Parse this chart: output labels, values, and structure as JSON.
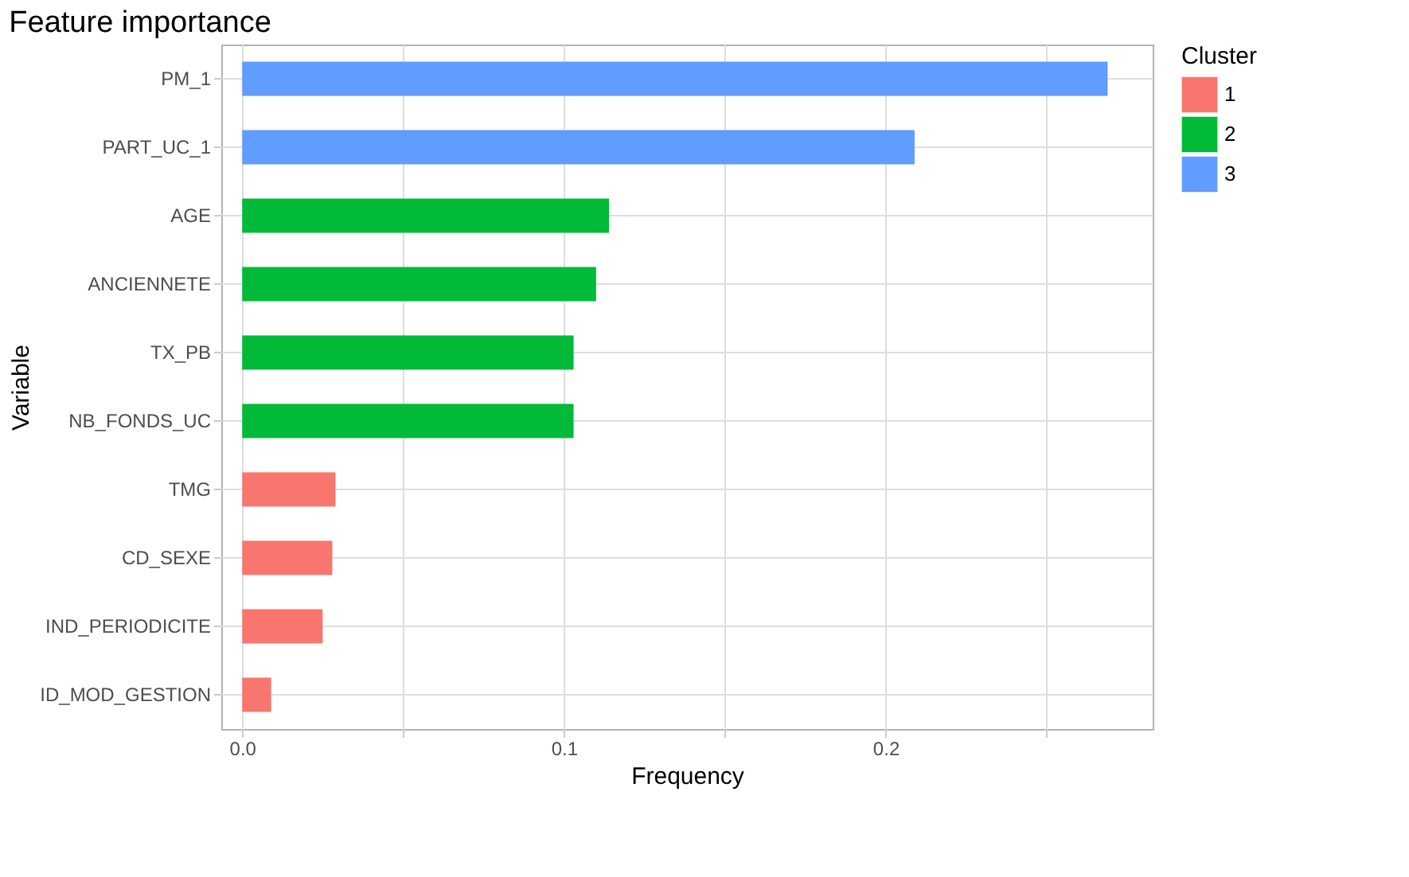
{
  "chart_data": {
    "type": "bar",
    "orientation": "horizontal",
    "title": "Feature importance",
    "xlabel": "Frequency",
    "ylabel": "Variable",
    "legend_title": "Cluster",
    "legend": "right",
    "grid": true,
    "categories": [
      "PM_1",
      "PART_UC_1",
      "AGE",
      "ANCIENNETE",
      "TX_PB",
      "NB_FONDS_UC",
      "TMG",
      "CD_SEXE",
      "IND_PERIODICITE",
      "ID_MOD_GESTION"
    ],
    "series": [
      {
        "name": "1",
        "color": "#f8766d",
        "values": [
          null,
          null,
          null,
          null,
          null,
          null,
          0.029,
          0.028,
          0.025,
          0.009
        ]
      },
      {
        "name": "2",
        "color": "#00ba38",
        "values": [
          null,
          null,
          0.114,
          0.11,
          0.103,
          0.103,
          null,
          null,
          null,
          null
        ]
      },
      {
        "name": "3",
        "color": "#619cff",
        "values": [
          0.269,
          0.209,
          null,
          null,
          null,
          null,
          null,
          null,
          null,
          null
        ]
      }
    ],
    "xlim": [
      -0.0065,
      0.283
    ],
    "xticks": [
      {
        "value": 0,
        "label": "0.0"
      },
      {
        "value": 0.05,
        "label": null
      },
      0.1,
      {
        "value": 0.15,
        "label": null
      },
      0.2,
      {
        "value": 0.25,
        "label": null
      }
    ]
  }
}
